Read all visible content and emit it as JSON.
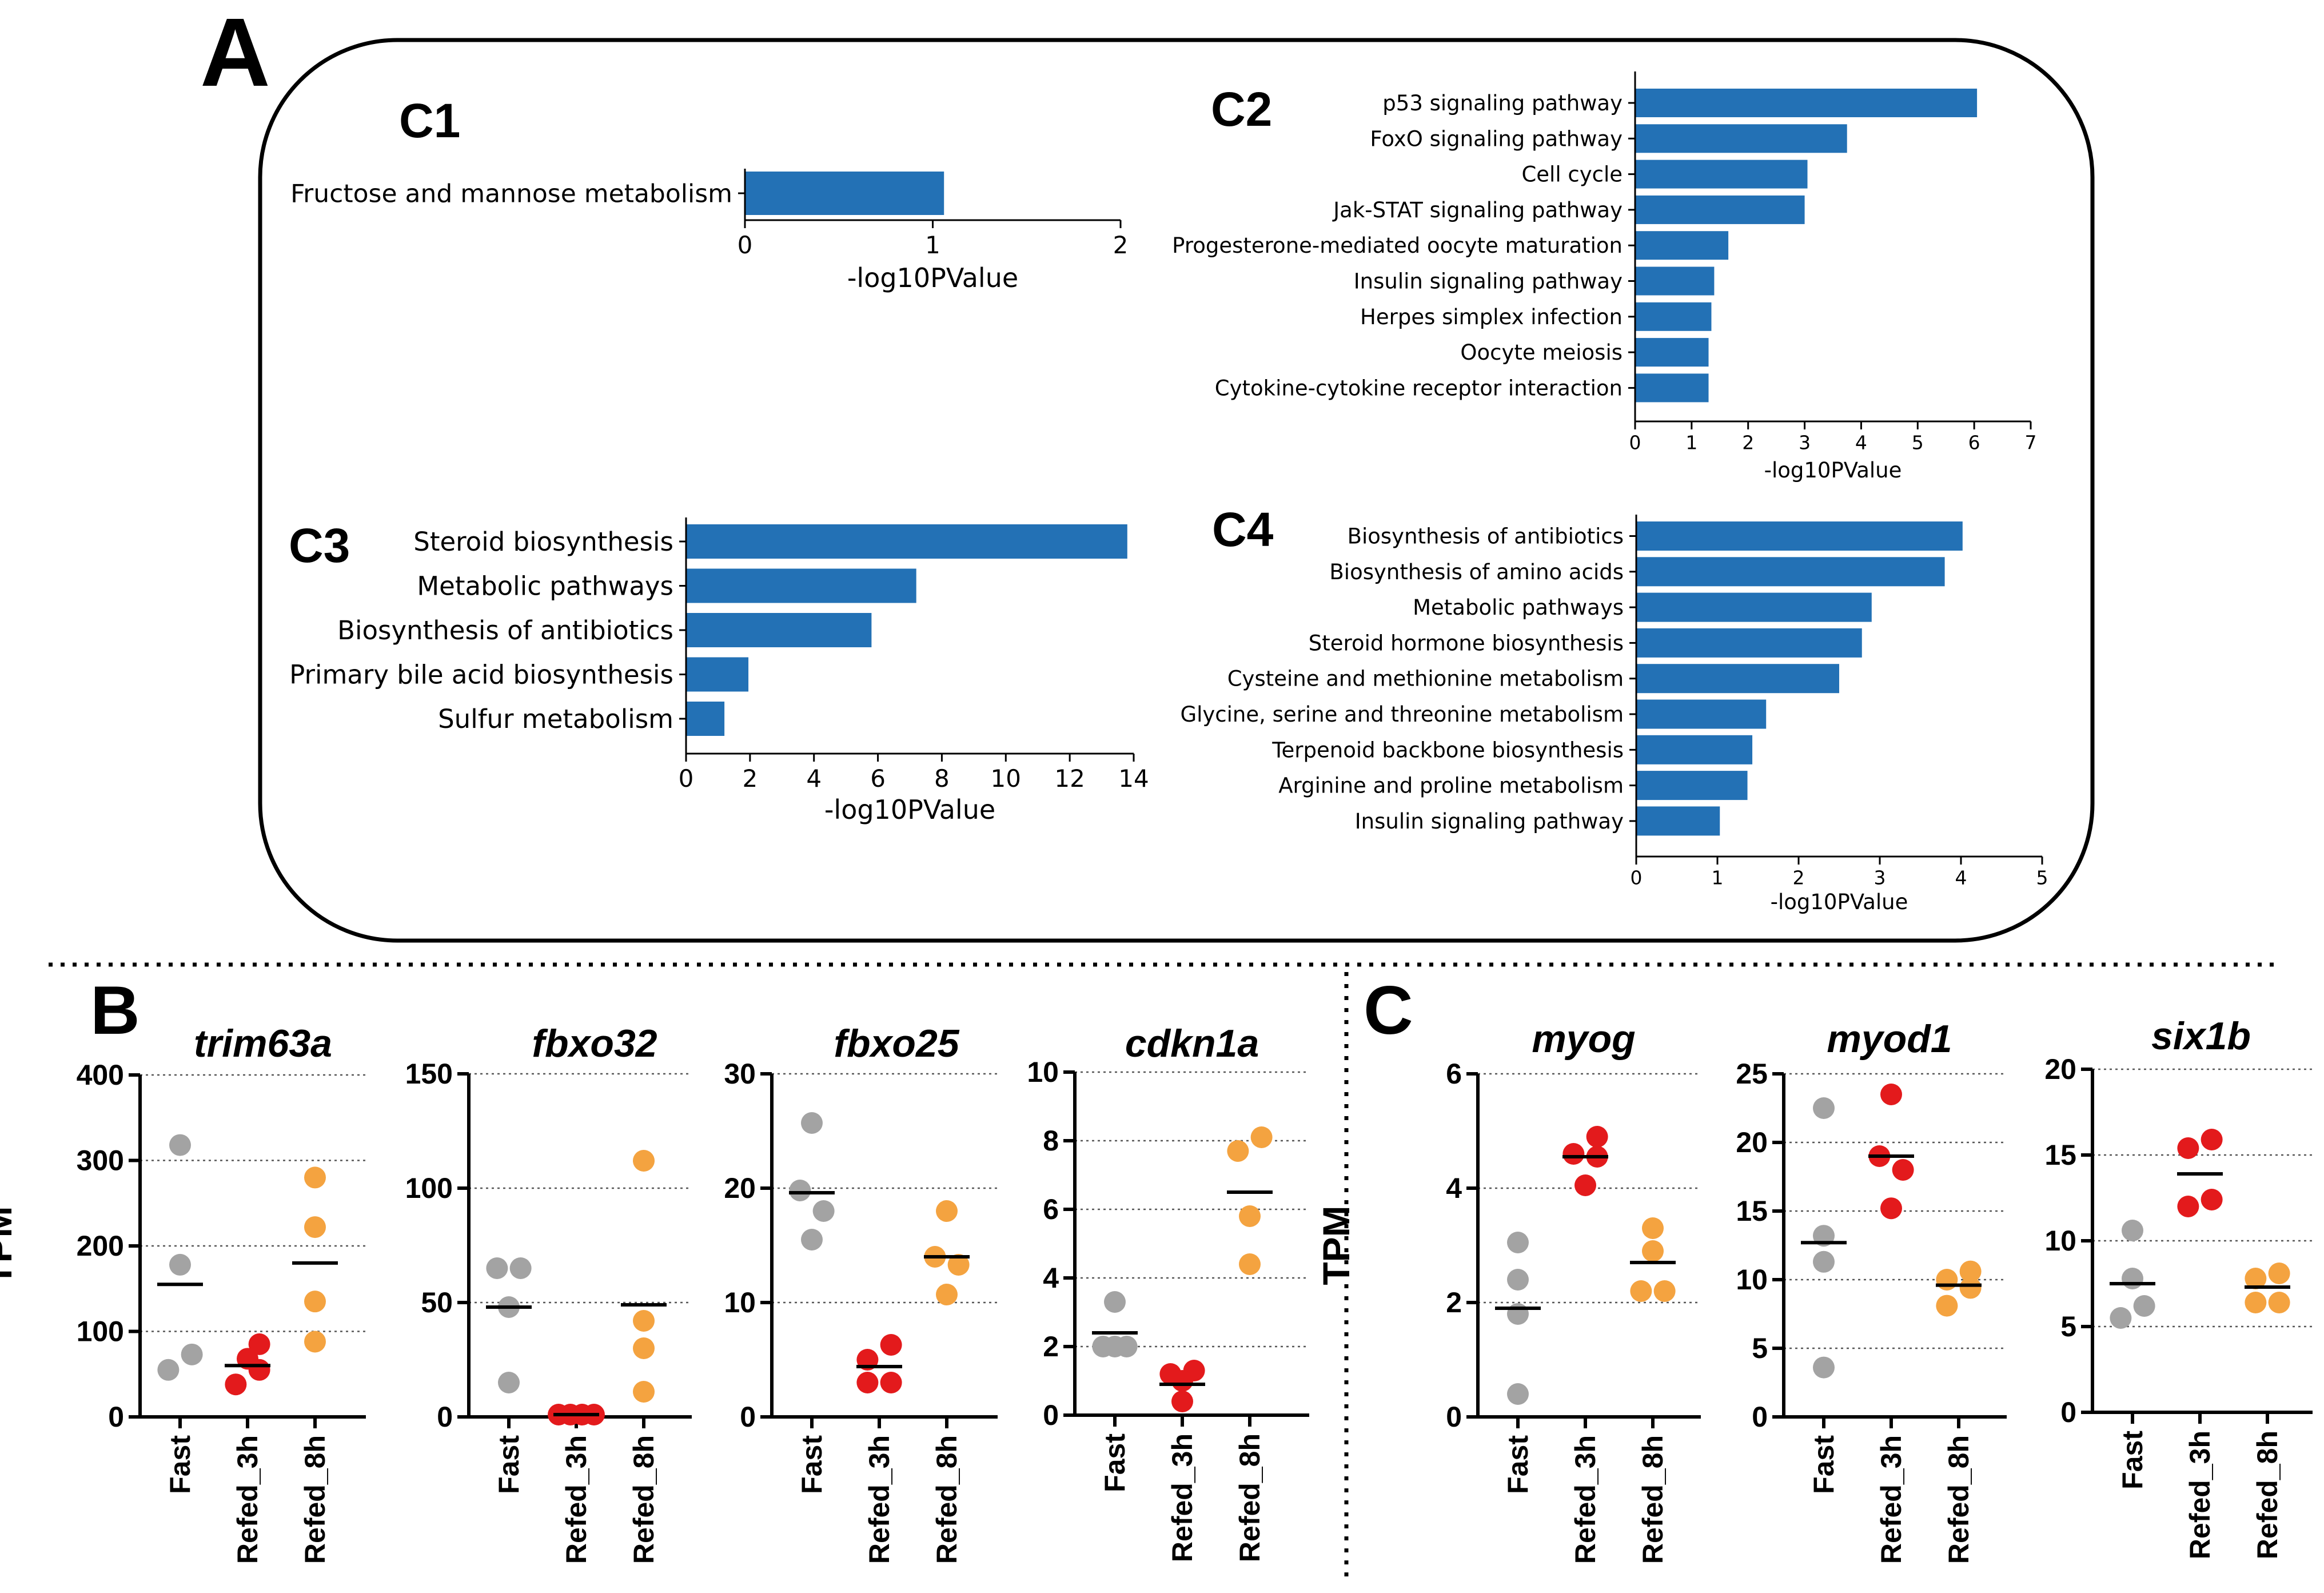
{
  "panels": {
    "A": {
      "label": "A"
    },
    "B": {
      "label": "B"
    },
    "C": {
      "label": "C"
    }
  },
  "colors": {
    "bar": "#2371b5",
    "fast": "#a3a3a3",
    "refed_3h": "#e31a1c",
    "refed_8h": "#f4a340",
    "axis": "#000000"
  },
  "chart_data": [
    {
      "id": "C1",
      "type": "bar",
      "orientation": "horizontal",
      "title": "C1",
      "xlabel": "-log10PValue",
      "xlim": [
        0,
        2
      ],
      "xticks": [
        0,
        1,
        2
      ],
      "categories": [
        "Fructose and mannose metabolism"
      ],
      "values": [
        1.06
      ]
    },
    {
      "id": "C2",
      "type": "bar",
      "orientation": "horizontal",
      "title": "C2",
      "xlabel": "-log10PValue",
      "xlim": [
        0,
        7
      ],
      "xticks": [
        0,
        1,
        2,
        3,
        4,
        5,
        6,
        7
      ],
      "categories": [
        "p53 signaling pathway",
        "FoxO signaling pathway",
        "Cell cycle",
        "Jak-STAT signaling pathway",
        "Progesterone-mediated oocyte maturation",
        "Insulin signaling pathway",
        "Herpes simplex infection",
        "Oocyte meiosis",
        "Cytokine-cytokine receptor interaction"
      ],
      "values": [
        6.05,
        3.75,
        3.05,
        3.0,
        1.65,
        1.4,
        1.35,
        1.3,
        1.3
      ]
    },
    {
      "id": "C3",
      "type": "bar",
      "orientation": "horizontal",
      "title": "C3",
      "xlabel": "-log10PValue",
      "xlim": [
        0,
        14
      ],
      "xticks": [
        0,
        2,
        4,
        6,
        8,
        10,
        12,
        14
      ],
      "categories": [
        "Steroid biosynthesis",
        "Metabolic pathways",
        "Biosynthesis of antibiotics",
        "Primary bile acid biosynthesis",
        "Sulfur metabolism"
      ],
      "values": [
        13.8,
        7.2,
        5.8,
        1.95,
        1.2
      ]
    },
    {
      "id": "C4",
      "type": "bar",
      "orientation": "horizontal",
      "title": "C4",
      "xlabel": "-log10PValue",
      "xlim": [
        0,
        5
      ],
      "xticks": [
        0,
        1,
        2,
        3,
        4,
        5
      ],
      "categories": [
        "Biosynthesis of antibiotics",
        "Biosynthesis of amino acids",
        "Metabolic pathways",
        "Steroid hormone biosynthesis",
        "Cysteine and methionine metabolism",
        "Glycine, serine and threonine metabolism",
        "Terpenoid backbone biosynthesis",
        "Arginine and proline metabolism",
        "Insulin signaling pathway"
      ],
      "values": [
        4.02,
        3.8,
        2.9,
        2.78,
        2.5,
        1.6,
        1.43,
        1.37,
        1.03
      ]
    },
    {
      "id": "trim63a",
      "type": "scatter",
      "panel": "B",
      "title": "trim63a",
      "ylabel": "TPM",
      "ylim": [
        0,
        400
      ],
      "yticks": [
        0,
        100,
        200,
        300,
        400
      ],
      "categories": [
        "Fast",
        "Refed_3h",
        "Refed_8h"
      ],
      "groups": [
        {
          "name": "Fast",
          "points": [
            [
              -0.3,
              55
            ],
            [
              0,
              178
            ],
            [
              0,
              318
            ],
            [
              0.3,
              73
            ]
          ],
          "mean": 155
        },
        {
          "name": "Refed_3h",
          "points": [
            [
              -0.3,
              38
            ],
            [
              0.3,
              55
            ],
            [
              0,
              68
            ],
            [
              0.3,
              85
            ]
          ],
          "mean": 60
        },
        {
          "name": "Refed_8h",
          "points": [
            [
              0,
              88
            ],
            [
              0,
              135
            ],
            [
              0,
              222
            ],
            [
              0,
              280
            ]
          ],
          "mean": 180
        }
      ]
    },
    {
      "id": "fbxo32",
      "type": "scatter",
      "panel": "B",
      "title": "fbxo32",
      "ylim": [
        0,
        150
      ],
      "yticks": [
        0,
        50,
        100,
        150
      ],
      "categories": [
        "Fast",
        "Refed_3h",
        "Refed_8h"
      ],
      "groups": [
        {
          "name": "Fast",
          "points": [
            [
              0,
              15
            ],
            [
              0,
              48
            ],
            [
              -0.3,
              65
            ],
            [
              0.3,
              65
            ]
          ],
          "mean": 48
        },
        {
          "name": "Refed_3h",
          "points": [
            [
              -0.45,
              1
            ],
            [
              -0.15,
              1
            ],
            [
              0.15,
              1
            ],
            [
              0.45,
              1
            ]
          ],
          "mean": 1
        },
        {
          "name": "Refed_8h",
          "points": [
            [
              0,
              11
            ],
            [
              0,
              30
            ],
            [
              0,
              42
            ],
            [
              0,
              112
            ]
          ],
          "mean": 49
        }
      ]
    },
    {
      "id": "fbxo25",
      "type": "scatter",
      "panel": "B",
      "title": "fbxo25",
      "ylim": [
        0,
        30
      ],
      "yticks": [
        0,
        10,
        20,
        30
      ],
      "categories": [
        "Fast",
        "Refed_3h",
        "Refed_8h"
      ],
      "groups": [
        {
          "name": "Fast",
          "points": [
            [
              0,
              15.5
            ],
            [
              0.3,
              18
            ],
            [
              -0.3,
              19.8
            ],
            [
              0,
              25.7
            ]
          ],
          "mean": 19.6
        },
        {
          "name": "Refed_3h",
          "points": [
            [
              -0.3,
              3
            ],
            [
              0.3,
              3
            ],
            [
              -0.3,
              5
            ],
            [
              0.3,
              6.3
            ]
          ],
          "mean": 4.4
        },
        {
          "name": "Refed_8h",
          "points": [
            [
              0,
              10.7
            ],
            [
              -0.3,
              14
            ],
            [
              0.3,
              13.3
            ],
            [
              0,
              18
            ]
          ],
          "mean": 14
        }
      ]
    },
    {
      "id": "cdkn1a",
      "type": "scatter",
      "panel": "B",
      "title": "cdkn1a",
      "ylim": [
        0,
        10
      ],
      "yticks": [
        0,
        2,
        4,
        6,
        8,
        10
      ],
      "categories": [
        "Fast",
        "Refed_3h",
        "Refed_8h"
      ],
      "groups": [
        {
          "name": "Fast",
          "points": [
            [
              -0.3,
              2
            ],
            [
              0,
              2
            ],
            [
              0.3,
              2
            ],
            [
              0,
              3.3
            ]
          ],
          "mean": 2.4
        },
        {
          "name": "Refed_3h",
          "points": [
            [
              0,
              0.4
            ],
            [
              -0.3,
              1.2
            ],
            [
              0.3,
              1.3
            ],
            [
              0,
              1
            ]
          ],
          "mean": 0.9
        },
        {
          "name": "Refed_8h",
          "points": [
            [
              0,
              4.4
            ],
            [
              0,
              5.8
            ],
            [
              -0.3,
              7.7
            ],
            [
              0.3,
              8.1
            ]
          ],
          "mean": 6.5
        }
      ]
    },
    {
      "id": "myog",
      "type": "scatter",
      "panel": "C",
      "title": "myog",
      "ylabel": "TPM",
      "ylim": [
        0,
        6
      ],
      "yticks": [
        0,
        2,
        4,
        6
      ],
      "categories": [
        "Fast",
        "Refed_3h",
        "Refed_8h"
      ],
      "groups": [
        {
          "name": "Fast",
          "points": [
            [
              0,
              0.4
            ],
            [
              0,
              1.8
            ],
            [
              0,
              2.4
            ],
            [
              0,
              3.05
            ]
          ],
          "mean": 1.9
        },
        {
          "name": "Refed_3h",
          "points": [
            [
              0,
              4.05
            ],
            [
              -0.3,
              4.6
            ],
            [
              0.3,
              4.55
            ],
            [
              0.3,
              4.9
            ]
          ],
          "mean": 4.55
        },
        {
          "name": "Refed_8h",
          "points": [
            [
              -0.3,
              2.2
            ],
            [
              0.3,
              2.2
            ],
            [
              0,
              2.9
            ],
            [
              0,
              3.3
            ]
          ],
          "mean": 2.7
        }
      ]
    },
    {
      "id": "myod1",
      "type": "scatter",
      "panel": "C",
      "title": "myod1",
      "ylim": [
        0,
        25
      ],
      "yticks": [
        0,
        5,
        10,
        15,
        20,
        25
      ],
      "categories": [
        "Fast",
        "Refed_3h",
        "Refed_8h"
      ],
      "groups": [
        {
          "name": "Fast",
          "points": [
            [
              0,
              3.6
            ],
            [
              0,
              11.3
            ],
            [
              0,
              13.2
            ],
            [
              0,
              22.5
            ]
          ],
          "mean": 12.7
        },
        {
          "name": "Refed_3h",
          "points": [
            [
              0,
              15.2
            ],
            [
              0.3,
              18
            ],
            [
              -0.3,
              19
            ],
            [
              0,
              23.5
            ]
          ],
          "mean": 19
        },
        {
          "name": "Refed_8h",
          "points": [
            [
              -0.3,
              8.1
            ],
            [
              0.3,
              9.4
            ],
            [
              -0.3,
              10
            ],
            [
              0.3,
              10.6
            ]
          ],
          "mean": 9.6
        }
      ]
    },
    {
      "id": "six1b",
      "type": "scatter",
      "panel": "C",
      "title": "six1b",
      "ylim": [
        0,
        20
      ],
      "yticks": [
        0,
        5,
        10,
        15,
        20
      ],
      "categories": [
        "Fast",
        "Refed_3h",
        "Refed_8h"
      ],
      "groups": [
        {
          "name": "Fast",
          "points": [
            [
              -0.3,
              5.5
            ],
            [
              0.3,
              6.2
            ],
            [
              0,
              7.8
            ],
            [
              0,
              10.6
            ]
          ],
          "mean": 7.5
        },
        {
          "name": "Refed_3h",
          "points": [
            [
              -0.3,
              12
            ],
            [
              0.3,
              12.4
            ],
            [
              -0.3,
              15.4
            ],
            [
              0.3,
              15.9
            ]
          ],
          "mean": 13.9
        },
        {
          "name": "Refed_8h",
          "points": [
            [
              -0.3,
              6.4
            ],
            [
              0.3,
              6.4
            ],
            [
              -0.3,
              7.8
            ],
            [
              0.3,
              8.1
            ]
          ],
          "mean": 7.3
        }
      ]
    }
  ]
}
